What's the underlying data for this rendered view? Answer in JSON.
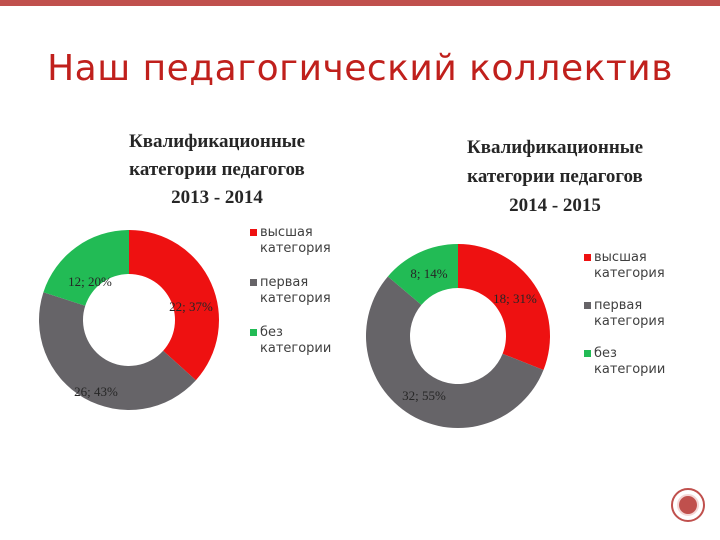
{
  "page": {
    "title": "Наш педагогический коллектив"
  },
  "colors": {
    "highest": "#ee1111",
    "first": "#666468",
    "none": "#22bb55",
    "title": "#c0201c"
  },
  "chart_data": [
    {
      "type": "pie",
      "title_lines": [
        "Квалификационные",
        "категории педагогов",
        "2013 - 2014"
      ],
      "categories": [
        "высшая категория",
        "первая категория",
        "без категории"
      ],
      "values": [
        22,
        26,
        12
      ],
      "percents": [
        37,
        43,
        20
      ],
      "data_labels": [
        "22; 37%",
        "26; 43%",
        "12; 20%"
      ],
      "legend": [
        "высшая категория",
        "первая категория",
        "без категории"
      ],
      "legend_position": "right"
    },
    {
      "type": "pie",
      "title_lines": [
        "Квалификационные",
        "категории педагогов",
        "2014 - 2015"
      ],
      "categories": [
        "высшая категория",
        "первая категория",
        "без категории"
      ],
      "values": [
        18,
        32,
        8
      ],
      "percents": [
        31,
        55,
        14
      ],
      "data_labels": [
        "18; 31%",
        "32; 55%",
        "8; 14%"
      ],
      "legend": [
        "высшая категория",
        "первая категория",
        "без категории"
      ],
      "legend_position": "right"
    }
  ]
}
